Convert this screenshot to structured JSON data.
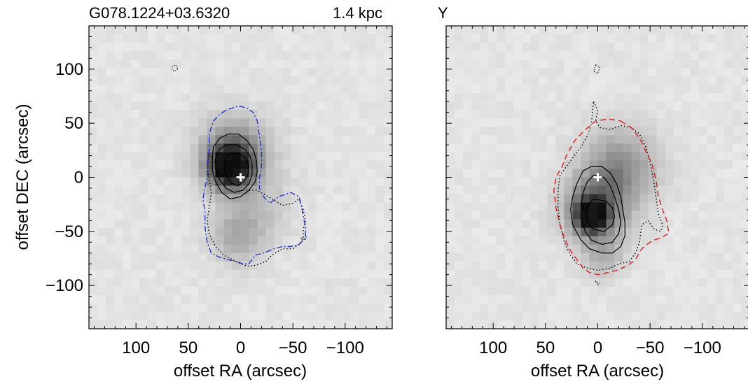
{
  "chart_data": [
    {
      "type": "heatmap",
      "title": "G078.1224+03.6320",
      "subtitle": "1.4 kpc",
      "xlabel": "offset RA (arcsec)",
      "ylabel": "offset DEC (arcsec)",
      "xlim": [
        145,
        -145
      ],
      "ylim": [
        -140,
        140
      ],
      "xticks": [
        100,
        50,
        0,
        -50,
        -100
      ],
      "xtick_labels": [
        "100",
        "50",
        "0",
        "−50",
        "−100"
      ],
      "yticks": [
        100,
        50,
        0,
        -50,
        -100
      ],
      "ytick_labels": [
        "100",
        "50",
        "0",
        "−50",
        "−100"
      ],
      "source_marker": [
        0,
        0
      ],
      "contours": {
        "outer_dotted": [
          [
            30,
            22
          ],
          [
            27,
            17
          ],
          [
            24,
            12
          ],
          [
            20,
            8
          ],
          [
            14,
            8
          ],
          [
            8,
            6
          ],
          [
            4,
            2
          ],
          [
            2,
            -6
          ],
          [
            -4,
            -12
          ],
          [
            -16,
            -12
          ],
          [
            -30,
            -20
          ],
          [
            -40,
            -26
          ],
          [
            -50,
            -24
          ],
          [
            -56,
            -20
          ],
          [
            -60,
            -30
          ],
          [
            -62,
            -40
          ],
          [
            -60,
            -48
          ],
          [
            -60,
            -56
          ],
          [
            -56,
            -62
          ],
          [
            -50,
            -66
          ],
          [
            -40,
            -66
          ],
          [
            -30,
            -72
          ],
          [
            -24,
            -78
          ],
          [
            -18,
            -80
          ],
          [
            -12,
            -82
          ],
          [
            -6,
            -82
          ],
          [
            0,
            -80
          ],
          [
            8,
            -76
          ],
          [
            16,
            -72
          ],
          [
            24,
            -64
          ],
          [
            30,
            -52
          ],
          [
            32,
            -40
          ],
          [
            30,
            -28
          ],
          [
            28,
            -14
          ],
          [
            30,
            -2
          ],
          [
            32,
            10
          ],
          [
            30,
            22
          ]
        ],
        "outer_dashdot": [
          [
            14,
            62
          ],
          [
            20,
            58
          ],
          [
            26,
            52
          ],
          [
            30,
            40
          ],
          [
            30,
            24
          ],
          [
            32,
            12
          ],
          [
            32,
            0
          ],
          [
            34,
            -10
          ],
          [
            36,
            -20
          ],
          [
            34,
            -32
          ],
          [
            34,
            -46
          ],
          [
            32,
            -60
          ],
          [
            28,
            -70
          ],
          [
            20,
            -74
          ],
          [
            12,
            -76
          ],
          [
            4,
            -78
          ],
          [
            -2,
            -80
          ],
          [
            -8,
            -80
          ],
          [
            -14,
            -72
          ],
          [
            -22,
            -70
          ],
          [
            -32,
            -66
          ],
          [
            -40,
            -64
          ],
          [
            -48,
            -64
          ],
          [
            -56,
            -62
          ],
          [
            -62,
            -56
          ],
          [
            -62,
            -46
          ],
          [
            -60,
            -36
          ],
          [
            -58,
            -26
          ],
          [
            -56,
            -18
          ],
          [
            -48,
            -14
          ],
          [
            -36,
            -18
          ],
          [
            -28,
            -24
          ],
          [
            -22,
            -18
          ],
          [
            -18,
            -10
          ],
          [
            -18,
            0
          ],
          [
            -20,
            10
          ],
          [
            -20,
            24
          ],
          [
            -18,
            38
          ],
          [
            -16,
            52
          ],
          [
            -12,
            60
          ],
          [
            -6,
            64
          ],
          [
            2,
            66
          ],
          [
            8,
            64
          ],
          [
            14,
            62
          ]
        ],
        "inner_solid": [
          [
            [
              12,
              40
            ],
            [
              20,
              36
            ],
            [
              26,
              28
            ],
            [
              27,
              18
            ],
            [
              27,
              6
            ],
            [
              24,
              -4
            ],
            [
              18,
              -14
            ],
            [
              10,
              -20
            ],
            [
              0,
              -18
            ],
            [
              -8,
              -12
            ],
            [
              -14,
              -4
            ],
            [
              -16,
              6
            ],
            [
              -15,
              16
            ],
            [
              -12,
              26
            ],
            [
              -6,
              34
            ],
            [
              2,
              40
            ],
            [
              12,
              40
            ]
          ],
          [
            [
              14,
              30
            ],
            [
              20,
              26
            ],
            [
              24,
              18
            ],
            [
              24,
              8
            ],
            [
              20,
              -2
            ],
            [
              14,
              -10
            ],
            [
              6,
              -14
            ],
            [
              -2,
              -12
            ],
            [
              -8,
              -6
            ],
            [
              -11,
              2
            ],
            [
              -11,
              12
            ],
            [
              -9,
              20
            ],
            [
              -4,
              26
            ],
            [
              4,
              30
            ],
            [
              14,
              30
            ]
          ],
          [
            [
              10,
              22
            ],
            [
              14,
              18
            ],
            [
              16,
              10
            ],
            [
              14,
              2
            ],
            [
              9,
              -5
            ],
            [
              3,
              -8
            ],
            [
              -3,
              -4
            ],
            [
              -7,
              2
            ],
            [
              -8,
              10
            ],
            [
              -6,
              16
            ],
            [
              -2,
              20
            ],
            [
              4,
              22
            ],
            [
              10,
              22
            ]
          ]
        ],
        "blobs": [
          [
            [
              60,
              100
            ],
            [
              64,
              98
            ],
            [
              66,
              102
            ],
            [
              62,
              104
            ]
          ],
          [
            [
              -58,
              -56
            ],
            [
              -62,
              -58
            ],
            [
              -63,
              -54
            ]
          ]
        ]
      }
    },
    {
      "type": "heatmap",
      "title": "Y",
      "xlabel": "offset RA (arcsec)",
      "xlim": [
        145,
        -145
      ],
      "ylim": [
        -140,
        140
      ],
      "xticks": [
        100,
        50,
        0,
        -50,
        -100
      ],
      "xtick_labels": [
        "100",
        "50",
        "0",
        "−50",
        "−100"
      ],
      "source_marker": [
        0,
        0
      ],
      "contours": {
        "outer_dotted": [
          [
            4,
            70
          ],
          [
            0,
            62
          ],
          [
            2,
            52
          ],
          [
            -2,
            46
          ],
          [
            -12,
            44
          ],
          [
            -22,
            48
          ],
          [
            -32,
            46
          ],
          [
            -40,
            40
          ],
          [
            -46,
            28
          ],
          [
            -50,
            14
          ],
          [
            -54,
            -6
          ],
          [
            -56,
            -20
          ],
          [
            -58,
            -34
          ],
          [
            -62,
            -44
          ],
          [
            -60,
            -50
          ],
          [
            -54,
            -48
          ],
          [
            -48,
            -40
          ],
          [
            -42,
            -44
          ],
          [
            -40,
            -60
          ],
          [
            -36,
            -70
          ],
          [
            -30,
            -78
          ],
          [
            -20,
            -80
          ],
          [
            -12,
            -84
          ],
          [
            0,
            -86
          ],
          [
            10,
            -84
          ],
          [
            20,
            -80
          ],
          [
            26,
            -72
          ],
          [
            32,
            -60
          ],
          [
            36,
            -44
          ],
          [
            38,
            -28
          ],
          [
            38,
            -12
          ],
          [
            36,
            2
          ],
          [
            30,
            10
          ],
          [
            24,
            18
          ],
          [
            16,
            28
          ],
          [
            10,
            38
          ],
          [
            6,
            50
          ],
          [
            4,
            70
          ]
        ],
        "outer_dashed": [
          [
            -22,
            52
          ],
          [
            -32,
            46
          ],
          [
            -40,
            36
          ],
          [
            -46,
            24
          ],
          [
            -52,
            12
          ],
          [
            -56,
            -4
          ],
          [
            -58,
            -18
          ],
          [
            -62,
            -30
          ],
          [
            -66,
            -40
          ],
          [
            -68,
            -52
          ],
          [
            -60,
            -56
          ],
          [
            -54,
            -58
          ],
          [
            -50,
            -60
          ],
          [
            -42,
            -66
          ],
          [
            -36,
            -76
          ],
          [
            -28,
            -82
          ],
          [
            -18,
            -86
          ],
          [
            -10,
            -88
          ],
          [
            0,
            -90
          ],
          [
            8,
            -88
          ],
          [
            14,
            -84
          ],
          [
            20,
            -76
          ],
          [
            26,
            -68
          ],
          [
            32,
            -56
          ],
          [
            36,
            -44
          ],
          [
            40,
            -28
          ],
          [
            42,
            -12
          ],
          [
            40,
            0
          ],
          [
            34,
            10
          ],
          [
            30,
            20
          ],
          [
            22,
            34
          ],
          [
            12,
            44
          ],
          [
            2,
            52
          ],
          [
            -10,
            54
          ],
          [
            -22,
            52
          ]
        ],
        "inner_solid": [
          [
            [
              6,
              10
            ],
            [
              14,
              6
            ],
            [
              20,
              -6
            ],
            [
              24,
              -18
            ],
            [
              26,
              -30
            ],
            [
              24,
              -44
            ],
            [
              16,
              -58
            ],
            [
              8,
              -66
            ],
            [
              -4,
              -70
            ],
            [
              -14,
              -70
            ],
            [
              -22,
              -64
            ],
            [
              -26,
              -54
            ],
            [
              -26,
              -42
            ],
            [
              -24,
              -30
            ],
            [
              -22,
              -18
            ],
            [
              -18,
              -6
            ],
            [
              -12,
              4
            ],
            [
              -4,
              10
            ],
            [
              6,
              10
            ]
          ],
          [
            [
              4,
              2
            ],
            [
              10,
              -4
            ],
            [
              14,
              -14
            ],
            [
              16,
              -26
            ],
            [
              16,
              -38
            ],
            [
              12,
              -50
            ],
            [
              6,
              -58
            ],
            [
              -4,
              -62
            ],
            [
              -14,
              -60
            ],
            [
              -20,
              -52
            ],
            [
              -22,
              -42
            ],
            [
              -20,
              -30
            ],
            [
              -16,
              -18
            ],
            [
              -12,
              -8
            ],
            [
              -6,
              0
            ],
            [
              4,
              2
            ]
          ],
          [
            [
              4,
              -20
            ],
            [
              10,
              -26
            ],
            [
              12,
              -34
            ],
            [
              10,
              -42
            ],
            [
              4,
              -48
            ],
            [
              -6,
              -50
            ],
            [
              -14,
              -44
            ],
            [
              -16,
              -36
            ],
            [
              -14,
              -28
            ],
            [
              -8,
              -22
            ],
            [
              4,
              -20
            ]
          ]
        ],
        "blobs": [
          [
            [
              2,
              104
            ],
            [
              4,
              98
            ],
            [
              0,
              96
            ],
            [
              -2,
              102
            ]
          ],
          [
            [
              2,
              -96
            ],
            [
              0,
              -100
            ],
            [
              -2,
              -98
            ]
          ]
        ]
      }
    }
  ]
}
